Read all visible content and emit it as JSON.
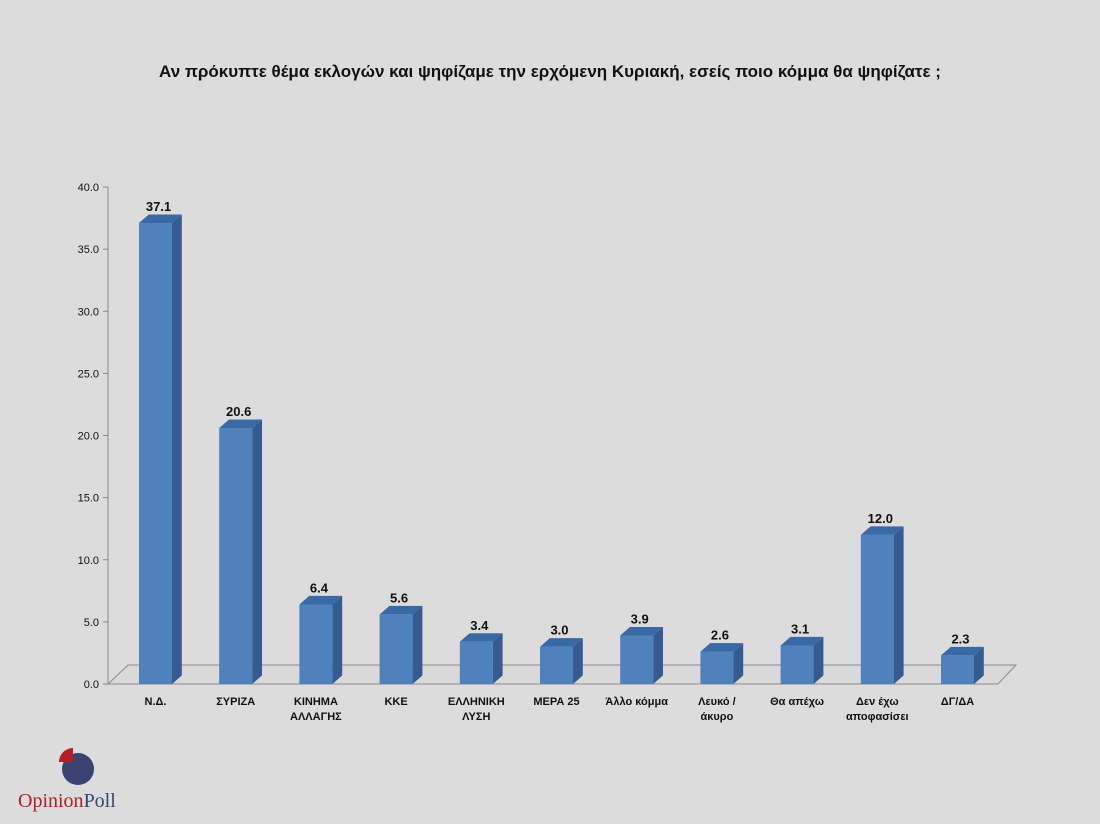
{
  "chart_data": {
    "type": "bar",
    "title": "Αν πρόκυπτε θέμα εκλογών και ψηφίζαμε την ερχόμενη Κυριακή, εσείς ποιο κόμμα θα ψηφίζατε ;",
    "xlabel": "",
    "ylabel": "",
    "ylim": [
      0,
      40
    ],
    "yticks": [
      "0.0",
      "5.0",
      "10.0",
      "15.0",
      "20.0",
      "25.0",
      "30.0",
      "35.0",
      "40.0"
    ],
    "categories": [
      [
        "Ν.Δ."
      ],
      [
        "ΣΥΡΙΖΑ"
      ],
      [
        "ΚΙΝΗΜΑ",
        "ΑΛΛΑΓΗΣ"
      ],
      [
        "ΚΚΕ"
      ],
      [
        "ΕΛΛΗΝΙΚΗ",
        "ΛΥΣΗ"
      ],
      [
        "ΜΕΡΑ 25"
      ],
      [
        "Άλλο κόμμα"
      ],
      [
        "Λευκό /",
        "άκυρο"
      ],
      [
        "Θα απέχω"
      ],
      [
        "Δεν έχω",
        "αποφασίσει"
      ],
      [
        "ΔΓ/ΔΑ"
      ]
    ],
    "values": [
      37.1,
      20.6,
      6.4,
      5.6,
      3.4,
      3.0,
      3.9,
      2.6,
      3.1,
      12.0,
      2.3
    ],
    "data_labels": [
      "37.1",
      "20.6",
      "6.4",
      "5.6",
      "3.4",
      "3.0",
      "3.9",
      "2.6",
      "3.1",
      "12.0",
      "2.3"
    ],
    "grid": false,
    "legend": "none",
    "colors": {
      "bar_front": "#4f81bd",
      "bar_side": "#345c91",
      "bar_top": "#3a6aa6",
      "axis": "#8a8a8a"
    }
  },
  "logo": {
    "word1": "Opinion",
    "word2": "Poll",
    "colors": {
      "red": "#b21e23",
      "navy": "#3a4272"
    }
  }
}
